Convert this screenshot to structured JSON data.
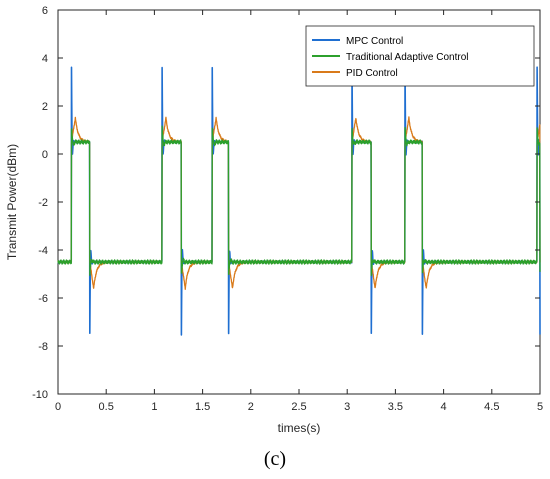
{
  "caption": "(c)",
  "chart_data": {
    "type": "line",
    "title": "",
    "xlabel": "times(s)",
    "ylabel": "Transmit Power(dBm)",
    "xlim": [
      0,
      5
    ],
    "ylim": [
      -10,
      6
    ],
    "xticks": [
      0,
      0.5,
      1,
      1.5,
      2,
      2.5,
      3,
      3.5,
      4,
      4.5,
      5
    ],
    "xtick_labels": [
      "0",
      "0.5",
      "1",
      "1.5",
      "2",
      "2.5",
      "3",
      "3.5",
      "4",
      "4.5",
      "5"
    ],
    "yticks": [
      -10,
      -8,
      -6,
      -4,
      -2,
      0,
      2,
      4,
      6
    ],
    "ytick_labels": [
      "-10",
      "-8",
      "-6",
      "-4",
      "-2",
      "0",
      "2",
      "4",
      "6"
    ],
    "grid": false,
    "legend_position": "top-right",
    "low_level": -4.5,
    "high_level": 0.5,
    "pulses": [
      [
        0.14,
        0.33
      ],
      [
        1.08,
        1.28
      ],
      [
        1.6,
        1.77
      ],
      [
        3.05,
        3.25
      ],
      [
        3.6,
        3.78
      ],
      [
        4.97,
        5.0
      ]
    ],
    "series": [
      {
        "name": "MPC Control",
        "color": "#1f6fd1",
        "overshoot_rise": 3.6,
        "overshoot_fall": -7.5
      },
      {
        "name": "Traditional Adaptive Control",
        "color": "#2ca02c",
        "overshoot_rise": 1.1,
        "overshoot_fall": -5.0
      },
      {
        "name": "PID Control",
        "color": "#d97a1a",
        "overshoot_rise": 1.5,
        "overshoot_fall": -5.6
      }
    ]
  }
}
